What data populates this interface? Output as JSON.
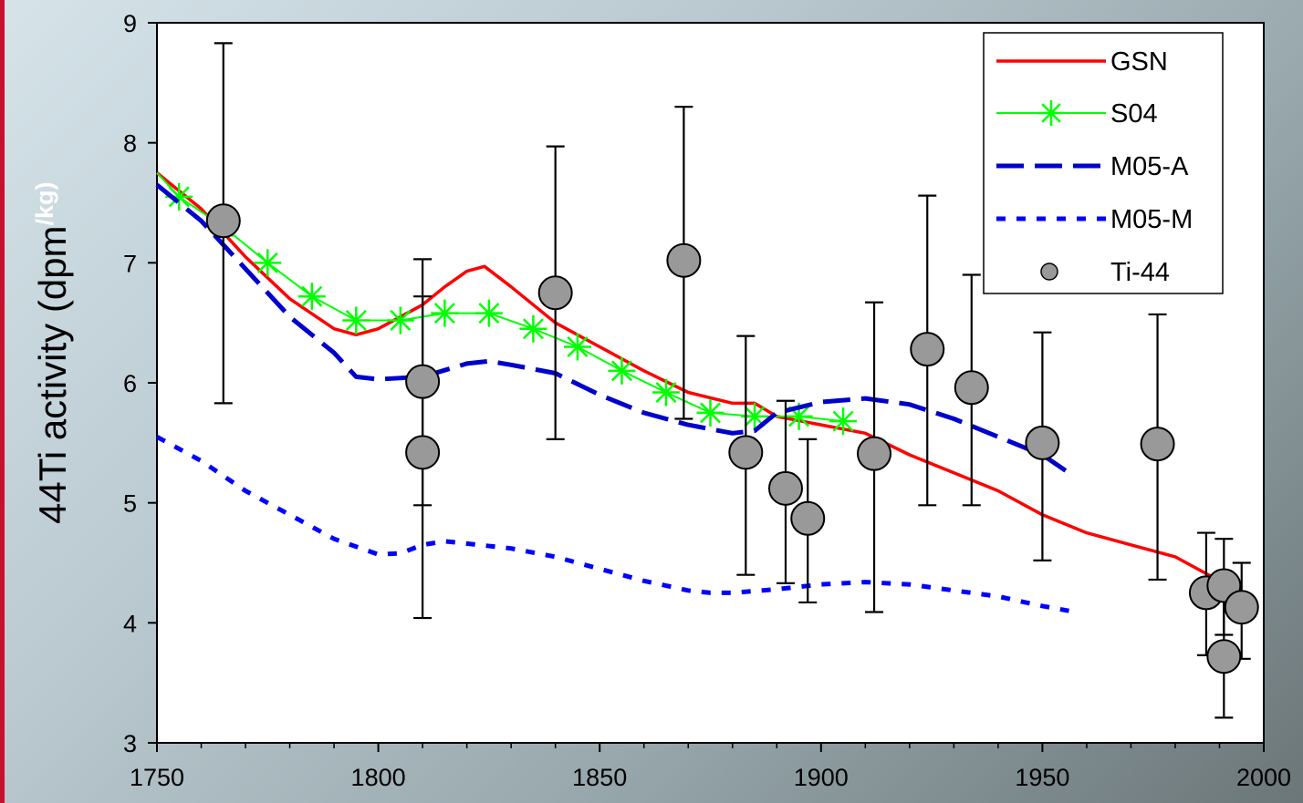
{
  "chart_data": {
    "type": "line",
    "title": "",
    "xlabel": "",
    "ylabel": "44Ti activity (dpm",
    "ylabel_unit": "/kg)",
    "xlim": [
      1750,
      2000
    ],
    "ylim": [
      3,
      9
    ],
    "x_ticks": [
      1750,
      1800,
      1850,
      1900,
      1950,
      2000
    ],
    "y_ticks": [
      3,
      4,
      5,
      6,
      7,
      8,
      9
    ],
    "grid": false,
    "legend_position": "top-right",
    "series": [
      {
        "name": "GSN",
        "color": "#ff0000",
        "style": "solid",
        "x": [
          1750,
          1760,
          1770,
          1780,
          1790,
          1795,
          1800,
          1810,
          1815,
          1820,
          1824,
          1830,
          1840,
          1850,
          1860,
          1870,
          1880,
          1885,
          1890,
          1900,
          1910,
          1920,
          1930,
          1940,
          1950,
          1960,
          1970,
          1980,
          1990
        ],
        "y": [
          7.75,
          7.45,
          7.05,
          6.7,
          6.45,
          6.4,
          6.45,
          6.65,
          6.8,
          6.93,
          6.97,
          6.8,
          6.5,
          6.3,
          6.1,
          5.92,
          5.83,
          5.83,
          5.72,
          5.65,
          5.58,
          5.4,
          5.25,
          5.1,
          4.9,
          4.75,
          4.65,
          4.55,
          4.35
        ]
      },
      {
        "name": "S04",
        "color": "#00ff00",
        "style": "solid-star",
        "x": [
          1750,
          1755,
          1765,
          1775,
          1785,
          1795,
          1805,
          1815,
          1825,
          1835,
          1845,
          1855,
          1865,
          1875,
          1885,
          1895,
          1905
        ],
        "y": [
          7.75,
          7.55,
          7.3,
          7.0,
          6.72,
          6.52,
          6.52,
          6.58,
          6.58,
          6.45,
          6.3,
          6.1,
          5.92,
          5.75,
          5.72,
          5.72,
          5.68
        ]
      },
      {
        "name": "M05-A",
        "color": "#0000cc",
        "style": "long-dash",
        "x": [
          1750,
          1760,
          1770,
          1780,
          1790,
          1795,
          1800,
          1810,
          1820,
          1825,
          1830,
          1840,
          1850,
          1860,
          1870,
          1880,
          1885,
          1890,
          1900,
          1910,
          1920,
          1930,
          1940,
          1950,
          1956
        ],
        "y": [
          7.65,
          7.35,
          6.95,
          6.55,
          6.25,
          6.05,
          6.03,
          6.05,
          6.16,
          6.18,
          6.15,
          6.08,
          5.9,
          5.75,
          5.65,
          5.58,
          5.6,
          5.75,
          5.84,
          5.87,
          5.82,
          5.7,
          5.55,
          5.4,
          5.25
        ]
      },
      {
        "name": "M05-M",
        "color": "#0000ff",
        "style": "dotted",
        "x": [
          1750,
          1760,
          1770,
          1780,
          1790,
          1800,
          1805,
          1810,
          1815,
          1820,
          1830,
          1840,
          1850,
          1860,
          1870,
          1875,
          1880,
          1890,
          1900,
          1910,
          1920,
          1930,
          1940,
          1950,
          1956
        ],
        "y": [
          5.55,
          5.35,
          5.1,
          4.9,
          4.7,
          4.57,
          4.58,
          4.65,
          4.68,
          4.66,
          4.62,
          4.55,
          4.45,
          4.35,
          4.27,
          4.25,
          4.25,
          4.28,
          4.32,
          4.34,
          4.32,
          4.27,
          4.22,
          4.14,
          4.1
        ]
      }
    ],
    "points": {
      "name": "Ti-44",
      "color": "#999999",
      "data": [
        {
          "x": 1765,
          "y": 7.35,
          "lo": 5.83,
          "hi": 8.83
        },
        {
          "x": 1810,
          "y": 6.01,
          "lo": 4.98,
          "hi": 7.03
        },
        {
          "x": 1810,
          "y": 5.42,
          "lo": 4.04,
          "hi": 6.72
        },
        {
          "x": 1840,
          "y": 6.75,
          "lo": 5.53,
          "hi": 7.97
        },
        {
          "x": 1869,
          "y": 7.02,
          "lo": 5.7,
          "hi": 8.3
        },
        {
          "x": 1883,
          "y": 5.42,
          "lo": 4.4,
          "hi": 6.39
        },
        {
          "x": 1892,
          "y": 5.12,
          "lo": 4.33,
          "hi": 5.85
        },
        {
          "x": 1897,
          "y": 4.87,
          "lo": 4.17,
          "hi": 5.53
        },
        {
          "x": 1912,
          "y": 5.41,
          "lo": 4.09,
          "hi": 6.67
        },
        {
          "x": 1924,
          "y": 6.28,
          "lo": 4.98,
          "hi": 7.56
        },
        {
          "x": 1934,
          "y": 5.96,
          "lo": 4.98,
          "hi": 6.9
        },
        {
          "x": 1950,
          "y": 5.5,
          "lo": 4.52,
          "hi": 6.42
        },
        {
          "x": 1976,
          "y": 5.49,
          "lo": 4.36,
          "hi": 6.57
        },
        {
          "x": 1987,
          "y": 4.25,
          "lo": 3.73,
          "hi": 4.75
        },
        {
          "x": 1991,
          "y": 4.31,
          "lo": 3.9,
          "hi": 4.7
        },
        {
          "x": 1991,
          "y": 3.72,
          "lo": 3.21,
          "hi": 4.25
        },
        {
          "x": 1995,
          "y": 4.13,
          "lo": 3.7,
          "hi": 4.5
        }
      ]
    },
    "legend": [
      "GSN",
      "S04",
      "M05-A",
      "M05-M",
      "Ti-44"
    ]
  }
}
